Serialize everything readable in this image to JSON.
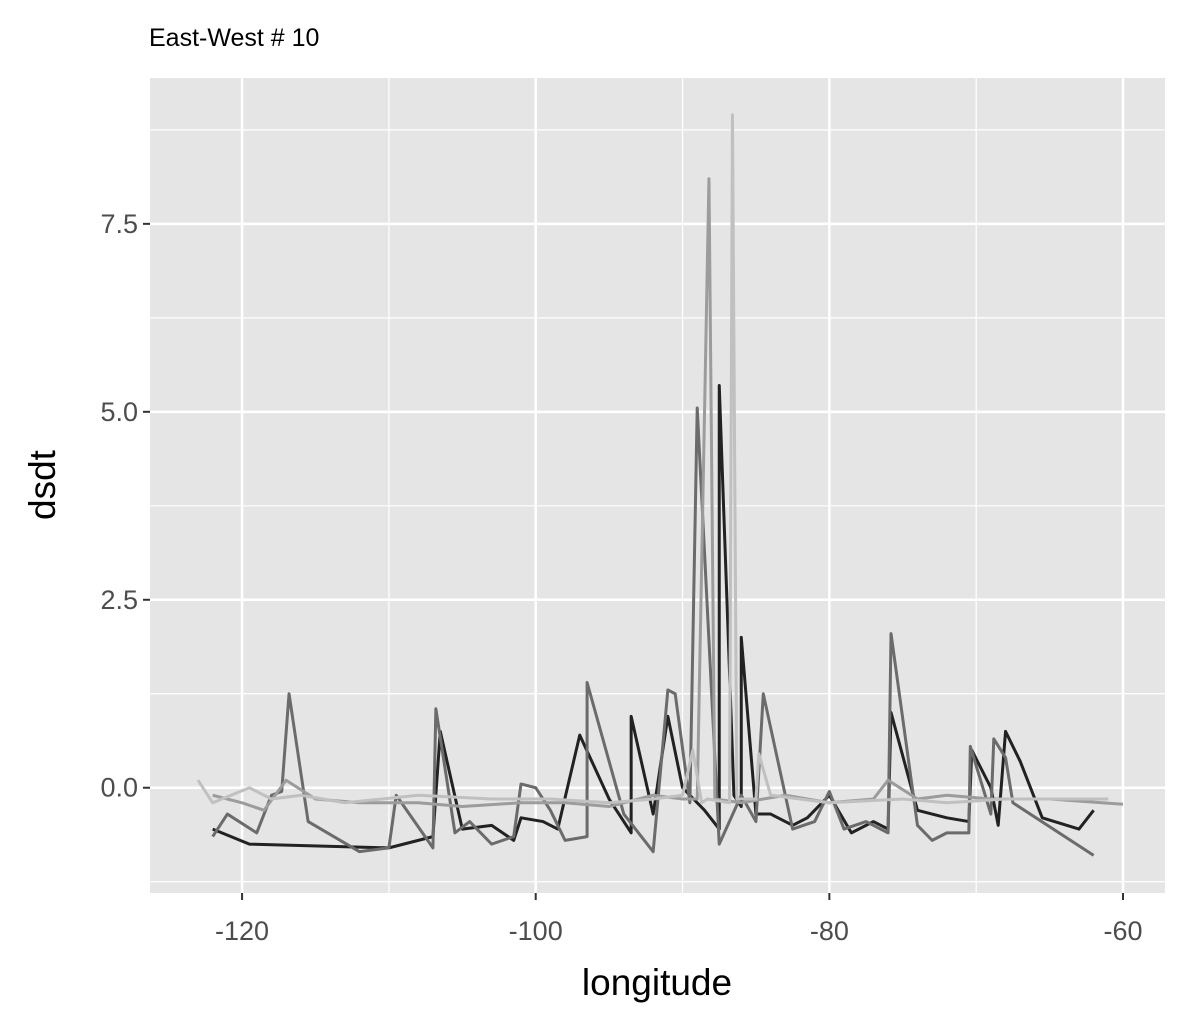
{
  "chart_data": {
    "type": "line",
    "title": "East-West # 10",
    "x_label": "longitude",
    "y_label": "dsdt",
    "xlim": [
      -126.27,
      -57.14
    ],
    "ylim": [
      -1.4,
      9.44
    ],
    "xticks": [
      -120,
      -100,
      -80,
      -60
    ],
    "yticks": [
      {
        "value": 0,
        "label": "0.0"
      },
      {
        "value": 2.5,
        "label": "2.5"
      },
      {
        "value": 5,
        "label": "5.0"
      },
      {
        "value": 7.5,
        "label": "7.5"
      }
    ],
    "grid": true,
    "series": [
      {
        "color": "#222222",
        "x": [
          -122,
          -119.5,
          -110,
          -107,
          -106.5,
          -105,
          -103,
          -101.5,
          -101,
          -99.5,
          -98.5,
          -97,
          -95,
          -93.5,
          -93.5,
          -92,
          -91,
          -90,
          -88.5,
          -87.5,
          -87.5,
          -86.5,
          -86,
          -86,
          -85,
          -84,
          -82.5,
          -81.5,
          -80,
          -78.5,
          -77,
          -76,
          -75.8,
          -74,
          -72,
          -70.5,
          -70.3,
          -69,
          -68.5,
          -68,
          -67,
          -65.5,
          -63,
          -62
        ],
        "values": [
          -0.55,
          -0.75,
          -0.8,
          -0.65,
          0.75,
          -0.55,
          -0.5,
          -0.7,
          -0.4,
          -0.45,
          -0.55,
          0.7,
          -0.15,
          -0.6,
          0.95,
          -0.35,
          0.95,
          0,
          -0.3,
          -0.55,
          5.35,
          -0.1,
          -0.25,
          2.0,
          -0.35,
          -0.35,
          -0.5,
          -0.4,
          -0.1,
          -0.6,
          -0.45,
          -0.55,
          1.0,
          -0.3,
          -0.4,
          -0.45,
          0.5,
          0,
          -0.5,
          0.75,
          0.35,
          -0.4,
          -0.55,
          -0.3
        ]
      },
      {
        "color": "#6b6b6b",
        "x": [
          -122,
          -121,
          -119,
          -118,
          -117.3,
          -116.8,
          -115.5,
          -112,
          -110,
          -109.5,
          -107,
          -106.8,
          -105.5,
          -104.5,
          -103,
          -101.5,
          -101,
          -100,
          -99,
          -98,
          -96.5,
          -96.5,
          -94,
          -92,
          -91,
          -90.5,
          -89.5,
          -89,
          -87.5,
          -86,
          -85,
          -84.5,
          -82.5,
          -81,
          -80,
          -79,
          -77.5,
          -76,
          -75.8,
          -74,
          -73,
          -72,
          -70.5,
          -70.4,
          -69,
          -68.8,
          -68,
          -67.5,
          -62
        ],
        "values": [
          -0.65,
          -0.35,
          -0.6,
          -0.1,
          -0.05,
          1.25,
          -0.45,
          -0.85,
          -0.8,
          -0.1,
          -0.8,
          1.05,
          -0.6,
          -0.45,
          -0.75,
          -0.65,
          0.05,
          0,
          -0.3,
          -0.7,
          -0.65,
          1.4,
          -0.35,
          -0.85,
          1.3,
          1.25,
          -0.2,
          5.05,
          -0.75,
          -0.1,
          -0.45,
          1.25,
          -0.55,
          -0.45,
          -0.05,
          -0.55,
          -0.45,
          -0.6,
          2.05,
          -0.5,
          -0.7,
          -0.6,
          -0.6,
          0.55,
          -0.35,
          0.65,
          0.4,
          -0.2,
          -0.9
        ]
      },
      {
        "color": "#9c9c9c",
        "x": [
          -122,
          -120,
          -118.5,
          -117,
          -115,
          -112,
          -108,
          -105,
          -101,
          -99.5,
          -98,
          -95,
          -92,
          -90,
          -89,
          -88.2,
          -87.8,
          -86,
          -83,
          -80,
          -77,
          -76,
          -74,
          -72,
          -69,
          -65,
          -60
        ],
        "values": [
          -0.1,
          -0.2,
          -0.3,
          0.1,
          -0.15,
          -0.2,
          -0.2,
          -0.25,
          -0.2,
          -0.2,
          -0.2,
          -0.25,
          -0.1,
          -0.15,
          -0.15,
          8.1,
          -0.15,
          -0.2,
          -0.1,
          -0.2,
          -0.15,
          0.1,
          -0.15,
          -0.1,
          -0.15,
          -0.15,
          -0.22
        ]
      },
      {
        "color": "#c0c0c0",
        "x": [
          -123,
          -122,
          -119.5,
          -118,
          -116,
          -113,
          -108,
          -103,
          -99,
          -95,
          -92,
          -90,
          -89.3,
          -88.7,
          -88.3,
          -86.8,
          -86.6,
          -86.3,
          -85,
          -84.8,
          -84,
          -80,
          -75,
          -72,
          -68,
          -64,
          -61
        ],
        "values": [
          0.1,
          -0.2,
          0,
          -0.15,
          -0.1,
          -0.2,
          -0.1,
          -0.15,
          -0.15,
          -0.2,
          -0.15,
          -0.1,
          0.5,
          -0.2,
          -0.15,
          -0.2,
          8.95,
          -0.15,
          -0.15,
          0.45,
          -0.1,
          -0.2,
          -0.15,
          -0.2,
          -0.15,
          -0.15,
          -0.15
        ]
      }
    ]
  }
}
